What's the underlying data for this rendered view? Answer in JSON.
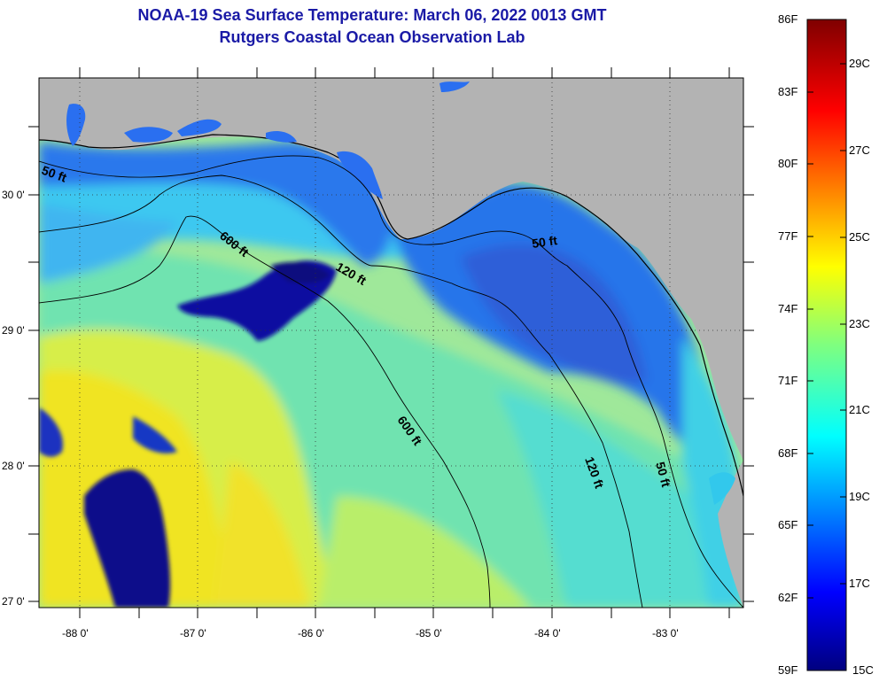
{
  "title": {
    "line1": "NOAA-19 Sea Surface Temperature:  March 06, 2022 0013 GMT",
    "line2": "Rutgers Coastal Ocean Observation Lab"
  },
  "map": {
    "lon_range": [
      -88.35,
      -82.4
    ],
    "lat_range": [
      26.95,
      30.85
    ],
    "lat_ticks": [
      {
        "value": 30,
        "label": "30 0'"
      },
      {
        "value": 29,
        "label": "29 0'"
      },
      {
        "value": 28,
        "label": "28 0'"
      },
      {
        "value": 27,
        "label": "27 0'"
      }
    ],
    "lon_ticks": [
      {
        "value": -88,
        "label": "-88 0'"
      },
      {
        "value": -87,
        "label": "-87 0'"
      },
      {
        "value": -86,
        "label": "-86 0'"
      },
      {
        "value": -85,
        "label": "-85 0'"
      },
      {
        "value": -84,
        "label": "-84 0'"
      },
      {
        "value": -83,
        "label": "-83 0'"
      }
    ],
    "contour_labels": [
      "50 ft",
      "600 ft",
      "120 ft",
      "50 ft",
      "600 ft",
      "120 ft",
      "50 ft"
    ],
    "colors": {
      "land": "#b3b3b3",
      "cold": "#0a0a8c",
      "coastal_blue": "#1e5ae6",
      "shelf_blue": "#2f8cf0",
      "cyan": "#32d2f0",
      "green": "#7ae6a0",
      "yellow_green": "#c8f064",
      "yellow": "#f2e61e"
    }
  },
  "colorbar": {
    "fahrenheit_labels": [
      "86F",
      "83F",
      "80F",
      "77F",
      "74F",
      "71F",
      "68F",
      "65F",
      "62F",
      "59F"
    ],
    "celsius_labels": [
      "29C",
      "27C",
      "25C",
      "23C",
      "21C",
      "19C",
      "17C",
      "15C"
    ],
    "range_f": [
      59,
      86
    ],
    "range_c": [
      15,
      30
    ]
  }
}
